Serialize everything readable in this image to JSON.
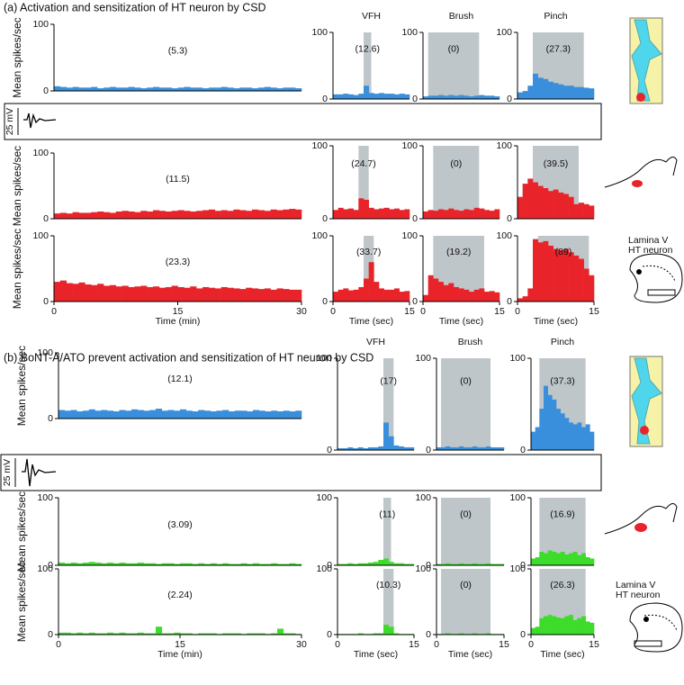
{
  "sections": [
    {
      "title": "(a) Activation and sensitization of HT neuron by CSD",
      "scale_label": "25 mV",
      "lamina_label": [
        "Lamina V",
        "HT neuron"
      ]
    },
    {
      "title": "(b) BoNT-A/ATO prevent activation and sensitization of HT neuron by CSD",
      "scale_label": "25 mV",
      "lamina_label": [
        "Lamina V",
        "HT neuron"
      ]
    }
  ],
  "chart_data": [
    {
      "type": "bar",
      "color": "#3a8fdc",
      "ylabel": "Mean spikes/sec",
      "annotation": "(5.3)",
      "xlim": [
        0,
        30
      ],
      "ylim": [
        0,
        100
      ],
      "yticks": [
        0,
        100
      ],
      "values": [
        7,
        6,
        5,
        6,
        5,
        5,
        6,
        4,
        5,
        6,
        5,
        5,
        6,
        5,
        4,
        5,
        6,
        5,
        5,
        4,
        5,
        6,
        5,
        5,
        4,
        5,
        5,
        6,
        5,
        4,
        5,
        5,
        4,
        5,
        6,
        5,
        4,
        5,
        5,
        4
      ]
    },
    {
      "type": "bar",
      "color": "#3a8fdc",
      "title": "VFH",
      "annotation": "(12.6)",
      "shade": [
        6,
        7.5
      ],
      "xlim": [
        0,
        15
      ],
      "ylim": [
        0,
        100
      ],
      "yticks": [
        0,
        100
      ],
      "values": [
        7,
        7,
        8,
        7,
        6,
        8,
        20,
        9,
        8,
        9,
        8,
        8,
        7,
        8,
        7
      ]
    },
    {
      "type": "bar",
      "color": "#3a8fdc",
      "title": "Brush",
      "annotation": "(0)",
      "shade": [
        1,
        11
      ],
      "xlim": [
        0,
        15
      ],
      "ylim": [
        0,
        100
      ],
      "yticks": [
        0,
        100
      ],
      "values": [
        4,
        5,
        5,
        6,
        5,
        6,
        5,
        6,
        5,
        4,
        5,
        6,
        5,
        5,
        4
      ]
    },
    {
      "type": "bar",
      "color": "#3a8fdc",
      "title": "Pinch",
      "annotation": "(27.3)",
      "shade": [
        3,
        13
      ],
      "xlim": [
        0,
        15
      ],
      "ylim": [
        0,
        100
      ],
      "yticks": [
        0,
        100
      ],
      "values": [
        10,
        12,
        20,
        38,
        32,
        30,
        26,
        24,
        22,
        20,
        20,
        18,
        18,
        17,
        16
      ]
    },
    {
      "type": "bar",
      "color": "#e8242a",
      "ylabel": "Mean spikes/sec",
      "annotation": "(11.5)",
      "xlim": [
        0,
        30
      ],
      "ylim": [
        0,
        100
      ],
      "yticks": [
        0,
        100
      ],
      "values": [
        8,
        9,
        8,
        10,
        9,
        9,
        10,
        11,
        10,
        9,
        11,
        12,
        11,
        10,
        12,
        11,
        13,
        12,
        11,
        12,
        13,
        12,
        11,
        12,
        13,
        14,
        12,
        13,
        12,
        14,
        13,
        12,
        14,
        13,
        12,
        14,
        13,
        14,
        15,
        14
      ]
    },
    {
      "type": "bar",
      "color": "#e8242a",
      "annotation": "(24.7)",
      "shade": [
        5,
        7
      ],
      "xlim": [
        0,
        15
      ],
      "ylim": [
        0,
        100
      ],
      "yticks": [
        0,
        100
      ],
      "values": [
        12,
        15,
        13,
        14,
        12,
        28,
        26,
        15,
        13,
        14,
        15,
        13,
        14,
        12,
        13
      ]
    },
    {
      "type": "bar",
      "color": "#e8242a",
      "annotation": "(0)",
      "shade": [
        2,
        11
      ],
      "xlim": [
        0,
        15
      ],
      "ylim": [
        0,
        100
      ],
      "yticks": [
        0,
        100
      ],
      "values": [
        10,
        12,
        11,
        13,
        12,
        14,
        12,
        11,
        13,
        12,
        15,
        14,
        12,
        11,
        13
      ]
    },
    {
      "type": "bar",
      "color": "#e8242a",
      "annotation": "(39.5)",
      "shade": [
        3,
        12
      ],
      "xlim": [
        0,
        15
      ],
      "ylim": [
        0,
        100
      ],
      "yticks": [
        0,
        100
      ],
      "values": [
        30,
        48,
        55,
        50,
        45,
        42,
        38,
        40,
        36,
        34,
        30,
        20,
        22,
        20,
        18
      ]
    },
    {
      "type": "bar",
      "color": "#e8242a",
      "ylabel": "Mean spikes/sec",
      "xlabel": "Time (min)",
      "annotation": "(23.3)",
      "xlim": [
        0,
        30
      ],
      "xticks": [
        0,
        15,
        30
      ],
      "ylim": [
        0,
        100
      ],
      "yticks": [
        0,
        100
      ],
      "values": [
        30,
        32,
        28,
        27,
        29,
        26,
        25,
        27,
        24,
        25,
        23,
        24,
        22,
        23,
        24,
        22,
        23,
        21,
        22,
        24,
        22,
        21,
        23,
        20,
        22,
        21,
        20,
        22,
        21,
        20,
        19,
        21,
        20,
        19,
        20,
        18,
        20,
        19,
        18,
        18
      ]
    },
    {
      "type": "bar",
      "color": "#e8242a",
      "xlabel": "Time (sec)",
      "annotation": "(33.7)",
      "shade": [
        6,
        8
      ],
      "xlim": [
        0,
        15
      ],
      "xticks": [
        0,
        15
      ],
      "ylim": [
        0,
        100
      ],
      "yticks": [
        0,
        100
      ],
      "values": [
        15,
        18,
        20,
        17,
        18,
        22,
        35,
        60,
        30,
        20,
        18,
        18,
        20,
        15,
        16
      ]
    },
    {
      "type": "bar",
      "color": "#e8242a",
      "xlabel": "Time (sec)",
      "annotation": "(19.2)",
      "shade": [
        2,
        12
      ],
      "xlim": [
        0,
        15
      ],
      "xticks": [
        0,
        15
      ],
      "ylim": [
        0,
        100
      ],
      "yticks": [
        0,
        100
      ],
      "values": [
        10,
        40,
        35,
        30,
        25,
        28,
        22,
        20,
        18,
        15,
        18,
        20,
        15,
        16,
        14
      ]
    },
    {
      "type": "bar",
      "color": "#e8242a",
      "xlabel": "Time (sec)",
      "annotation": "(89)",
      "shade": [
        4,
        14
      ],
      "xlim": [
        0,
        15
      ],
      "xticks": [
        0,
        15
      ],
      "ylim": [
        0,
        100
      ],
      "yticks": [
        0,
        100
      ],
      "values": [
        5,
        8,
        20,
        95,
        90,
        92,
        85,
        80,
        78,
        80,
        75,
        70,
        65,
        50,
        40
      ]
    },
    {
      "type": "bar",
      "color": "#3a8fdc",
      "ylabel": "Mean spikes/sec",
      "annotation": "(12.1)",
      "xlim": [
        0,
        30
      ],
      "ylim": [
        0,
        100
      ],
      "yticks": [
        0,
        100
      ],
      "values": [
        13,
        12,
        13,
        11,
        12,
        14,
        12,
        13,
        12,
        11,
        13,
        12,
        14,
        13,
        12,
        13,
        15,
        12,
        13,
        12,
        14,
        12,
        11,
        13,
        12,
        11,
        12,
        13,
        11,
        12,
        12,
        11,
        13,
        12,
        11,
        12,
        11,
        12,
        11,
        12
      ]
    },
    {
      "type": "bar",
      "color": "#3a8fdc",
      "title": "VFH",
      "annotation": "(17)",
      "shade": [
        9,
        11
      ],
      "xlim": [
        0,
        15
      ],
      "ylim": [
        0,
        100
      ],
      "yticks": [
        0,
        100
      ],
      "values": [
        2,
        2,
        3,
        2,
        3,
        2,
        3,
        3,
        4,
        30,
        15,
        5,
        4,
        3,
        3
      ]
    },
    {
      "type": "bar",
      "color": "#3a8fdc",
      "title": "Brush",
      "annotation": "(0)",
      "shade": [
        1,
        12
      ],
      "xlim": [
        0,
        15
      ],
      "ylim": [
        0,
        100
      ],
      "yticks": [
        0,
        100
      ],
      "values": [
        3,
        3,
        4,
        3,
        3,
        4,
        3,
        3,
        4,
        3,
        3,
        4,
        3,
        3,
        3
      ]
    },
    {
      "type": "bar",
      "color": "#3a8fdc",
      "title": "Pinch",
      "annotation": "(37.3)",
      "shade": [
        2,
        13
      ],
      "xlim": [
        0,
        15
      ],
      "ylim": [
        0,
        100
      ],
      "yticks": [
        0,
        100
      ],
      "values": [
        20,
        25,
        45,
        70,
        60,
        55,
        45,
        40,
        35,
        30,
        28,
        30,
        25,
        28,
        20
      ]
    },
    {
      "type": "bar",
      "color": "#3ddc2a",
      "ylabel": "Mean spikes/sec",
      "annotation": "(3.09)",
      "xlim": [
        0,
        30
      ],
      "ylim": [
        0,
        100
      ],
      "yticks": [
        0,
        100
      ],
      "values": [
        4,
        3,
        4,
        3,
        4,
        5,
        4,
        3,
        4,
        3,
        4,
        3,
        3,
        4,
        3,
        3,
        2,
        3,
        3,
        2,
        3,
        3,
        2,
        3,
        2,
        3,
        2,
        3,
        2,
        2,
        3,
        2,
        3,
        2,
        2,
        3,
        2,
        2,
        3,
        2
      ]
    },
    {
      "type": "bar",
      "color": "#3ddc2a",
      "annotation": "(11)",
      "shade": [
        9,
        10.5
      ],
      "xlim": [
        0,
        15
      ],
      "ylim": [
        0,
        100
      ],
      "yticks": [
        0,
        100
      ],
      "values": [
        2,
        2,
        3,
        2,
        3,
        3,
        4,
        5,
        8,
        10,
        5,
        3,
        3,
        2,
        2
      ]
    },
    {
      "type": "bar",
      "color": "#3ddc2a",
      "annotation": "(0)",
      "shade": [
        1,
        12
      ],
      "xlim": [
        0,
        15
      ],
      "ylim": [
        0,
        100
      ],
      "yticks": [
        0,
        100
      ],
      "values": [
        2,
        2,
        3,
        2,
        2,
        3,
        2,
        2,
        3,
        2,
        2,
        3,
        2,
        2,
        2
      ]
    },
    {
      "type": "bar",
      "color": "#3ddc2a",
      "annotation": "(16.9)",
      "shade": [
        2,
        13
      ],
      "xlim": [
        0,
        15
      ],
      "ylim": [
        0,
        100
      ],
      "yticks": [
        0,
        100
      ],
      "values": [
        10,
        12,
        20,
        18,
        22,
        20,
        18,
        20,
        16,
        18,
        20,
        15,
        18,
        12,
        10
      ]
    },
    {
      "type": "bar",
      "color": "#3ddc2a",
      "ylabel": "Mean spikes/sec",
      "xlabel": "Time (min)",
      "annotation": "(2.24)",
      "xlim": [
        0,
        30
      ],
      "xticks": [
        0,
        15,
        30
      ],
      "ylim": [
        0,
        100
      ],
      "yticks": [
        0,
        100
      ],
      "values": [
        3,
        3,
        2,
        3,
        2,
        3,
        2,
        2,
        3,
        2,
        3,
        2,
        2,
        3,
        2,
        2,
        12,
        2,
        2,
        3,
        2,
        2,
        1,
        2,
        2,
        2,
        1,
        2,
        2,
        2,
        1,
        2,
        2,
        2,
        1,
        2,
        9,
        2,
        2,
        1
      ]
    },
    {
      "type": "bar",
      "color": "#3ddc2a",
      "xlabel": "Time (sec)",
      "annotation": "(10.3)",
      "shade": [
        9,
        11
      ],
      "xlim": [
        0,
        15
      ],
      "xticks": [
        0,
        15
      ],
      "ylim": [
        0,
        100
      ],
      "yticks": [
        0,
        100
      ],
      "values": [
        1,
        1,
        1,
        1,
        2,
        1,
        1,
        2,
        2,
        15,
        12,
        2,
        1,
        1,
        1
      ]
    },
    {
      "type": "bar",
      "color": "#3ddc2a",
      "xlabel": "Time (sec)",
      "annotation": "(0)",
      "shade": [
        1,
        12
      ],
      "xlim": [
        0,
        15
      ],
      "xticks": [
        0,
        15
      ],
      "ylim": [
        0,
        100
      ],
      "yticks": [
        0,
        100
      ],
      "values": [
        1,
        1,
        2,
        1,
        1,
        2,
        1,
        1,
        2,
        1,
        1,
        2,
        1,
        1,
        1
      ]
    },
    {
      "type": "bar",
      "color": "#3ddc2a",
      "xlabel": "Time (sec)",
      "annotation": "(26.3)",
      "shade": [
        2,
        13
      ],
      "xlim": [
        0,
        15
      ],
      "xticks": [
        0,
        15
      ],
      "ylim": [
        0,
        100
      ],
      "yticks": [
        0,
        100
      ],
      "values": [
        10,
        12,
        25,
        28,
        30,
        28,
        26,
        25,
        28,
        30,
        22,
        25,
        28,
        20,
        18
      ]
    }
  ]
}
